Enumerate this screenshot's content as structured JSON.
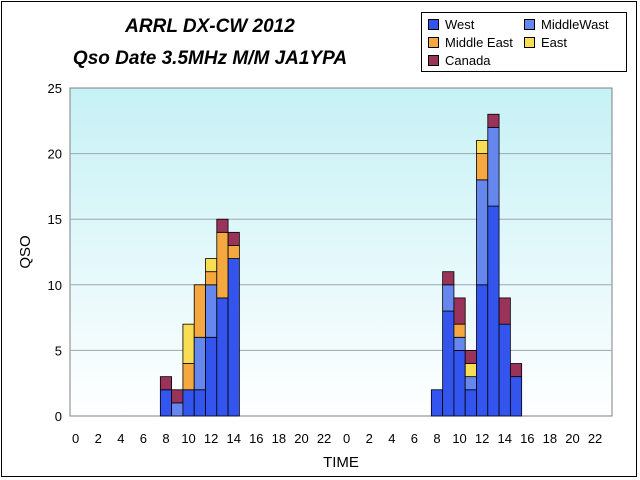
{
  "chart_data": {
    "type": "bar",
    "stacked": true,
    "title": "ARRL DX-CW 2012",
    "subtitle": "Qso Date 3.5MHz M/M JA1YPA",
    "xlabel": "TIME",
    "ylabel": "QSO",
    "ylim": [
      0,
      25
    ],
    "yticks": [
      0,
      5,
      10,
      15,
      20,
      25
    ],
    "grid": true,
    "legend_position": "top-right",
    "categories": [
      "0",
      "1",
      "2",
      "3",
      "4",
      "5",
      "6",
      "7",
      "8",
      "9",
      "10",
      "11",
      "12",
      "13",
      "14",
      "15",
      "16",
      "17",
      "18",
      "19",
      "20",
      "21",
      "22",
      "23",
      "0",
      "1",
      "2",
      "3",
      "4",
      "5",
      "6",
      "7",
      "8",
      "9",
      "10",
      "11",
      "12",
      "13",
      "14",
      "15",
      "16",
      "17",
      "18",
      "19",
      "20",
      "21",
      "22",
      "23"
    ],
    "tick_labels": [
      "0",
      "2",
      "4",
      "6",
      "8",
      "10",
      "12",
      "14",
      "16",
      "18",
      "20",
      "22",
      "0",
      "2",
      "4",
      "6",
      "8",
      "10",
      "12",
      "14",
      "16",
      "18",
      "20",
      "22"
    ],
    "series": [
      {
        "name": "West",
        "color": "#3355ee",
        "values": [
          0,
          0,
          0,
          0,
          0,
          0,
          0,
          0,
          2,
          0,
          2,
          2,
          6,
          9,
          12,
          0,
          0,
          0,
          0,
          0,
          0,
          0,
          0,
          0,
          0,
          0,
          0,
          0,
          0,
          0,
          0,
          0,
          2,
          8,
          5,
          2,
          10,
          16,
          7,
          3,
          0,
          0,
          0,
          0,
          0,
          0,
          0,
          0
        ]
      },
      {
        "name": "MiddleWast",
        "color": "#6688ee",
        "values": [
          0,
          0,
          0,
          0,
          0,
          0,
          0,
          0,
          0,
          1,
          0,
          4,
          4,
          0,
          0,
          0,
          0,
          0,
          0,
          0,
          0,
          0,
          0,
          0,
          0,
          0,
          0,
          0,
          0,
          0,
          0,
          0,
          0,
          2,
          1,
          1,
          8,
          6,
          0,
          0,
          0,
          0,
          0,
          0,
          0,
          0,
          0,
          0
        ]
      },
      {
        "name": "Middle East",
        "color": "#f5a840",
        "values": [
          0,
          0,
          0,
          0,
          0,
          0,
          0,
          0,
          0,
          0,
          2,
          4,
          1,
          5,
          1,
          0,
          0,
          0,
          0,
          0,
          0,
          0,
          0,
          0,
          0,
          0,
          0,
          0,
          0,
          0,
          0,
          0,
          0,
          0,
          1,
          0,
          2,
          0,
          0,
          0,
          0,
          0,
          0,
          0,
          0,
          0,
          0,
          0
        ]
      },
      {
        "name": "East",
        "color": "#f8dd55",
        "values": [
          0,
          0,
          0,
          0,
          0,
          0,
          0,
          0,
          0,
          0,
          3,
          0,
          1,
          0,
          0,
          0,
          0,
          0,
          0,
          0,
          0,
          0,
          0,
          0,
          0,
          0,
          0,
          0,
          0,
          0,
          0,
          0,
          0,
          0,
          0,
          1,
          1,
          0,
          0,
          0,
          0,
          0,
          0,
          0,
          0,
          0,
          0,
          0
        ]
      },
      {
        "name": "Canada",
        "color": "#99335a",
        "values": [
          0,
          0,
          0,
          0,
          0,
          0,
          0,
          0,
          1,
          1,
          0,
          0,
          0,
          1,
          1,
          0,
          0,
          0,
          0,
          0,
          0,
          0,
          0,
          0,
          0,
          0,
          0,
          0,
          0,
          0,
          0,
          0,
          0,
          1,
          2,
          1,
          0,
          1,
          2,
          1,
          0,
          0,
          0,
          0,
          0,
          0,
          0,
          0
        ]
      }
    ]
  }
}
